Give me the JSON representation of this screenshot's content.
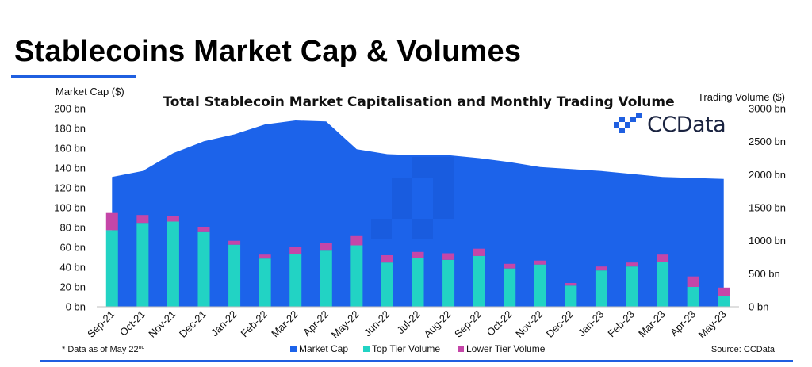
{
  "page": {
    "title": "Stablecoins Market Cap & Volumes",
    "footnote": "* Data as of May 22",
    "footnote_sup": "nd",
    "source": "Source: CCData",
    "logo_text": "CCData",
    "accent_color": "#1f5fe0"
  },
  "chart_data": {
    "type": "bar",
    "title": "Total Stablecoin Market Capitalisation and Monthly Trading Volume",
    "left_axis_label": "Market Cap ($)",
    "right_axis_label": "Trading Volume ($)",
    "left_ylim": [
      0,
      200
    ],
    "right_ylim": [
      0,
      3000
    ],
    "left_ticks": [
      "0 bn",
      "20 bn",
      "40 bn",
      "60 bn",
      "80 bn",
      "100 bn",
      "120 bn",
      "140 bn",
      "160 bn",
      "180 bn",
      "200 bn"
    ],
    "right_ticks": [
      "0 bn",
      "500 bn",
      "1000 bn",
      "1500 bn",
      "2000 bn",
      "2500 bn",
      "3000 bn"
    ],
    "categories": [
      "Sep-21",
      "Oct-21",
      "Nov-21",
      "Dec-21",
      "Jan-22",
      "Feb-22",
      "Mar-22",
      "Apr-22",
      "May-22",
      "Jun-22",
      "Jul-22",
      "Aug-22",
      "Sep-22",
      "Oct-22",
      "Nov-22",
      "Dec-22",
      "Jan-23",
      "Feb-23",
      "Mar-23",
      "Apr-23",
      "May-23"
    ],
    "grid": false,
    "legend_position": "bottom",
    "series": [
      {
        "name": "Market Cap",
        "type": "area",
        "axis": "left",
        "color": "#1c63ea",
        "values": [
          131,
          137,
          155,
          167,
          174,
          184,
          188,
          187,
          159,
          154,
          153,
          153,
          150,
          146,
          141,
          139,
          137,
          134,
          131,
          130,
          129
        ]
      },
      {
        "name": "Top Tier Volume",
        "type": "bar",
        "axis": "right",
        "color": "#22d3c4",
        "values": [
          1160,
          1270,
          1290,
          1130,
          940,
          730,
          800,
          850,
          930,
          670,
          740,
          710,
          770,
          580,
          640,
          320,
          550,
          610,
          680,
          300,
          160
        ]
      },
      {
        "name": "Lower Tier Volume",
        "type": "bar",
        "axis": "right",
        "color": "#c546a8",
        "values": [
          260,
          120,
          80,
          70,
          60,
          60,
          100,
          120,
          140,
          110,
          90,
          100,
          110,
          70,
          60,
          40,
          60,
          60,
          110,
          160,
          130
        ]
      }
    ]
  }
}
